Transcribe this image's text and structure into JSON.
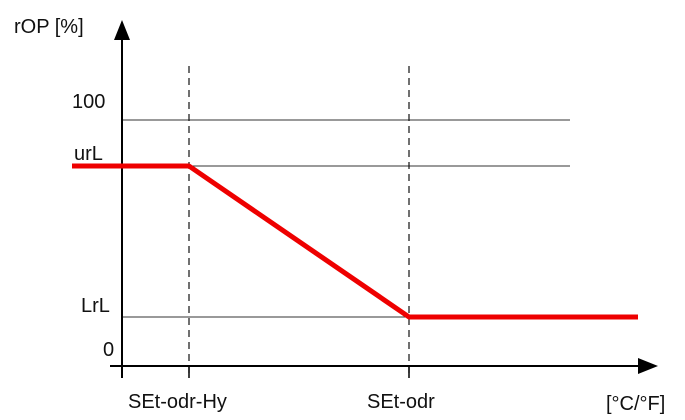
{
  "chart_data": {
    "type": "line",
    "ylabel": "rOP [%]",
    "xlabel": "[°C/°F]",
    "y_ticks": [
      {
        "label": "100",
        "value": 100
      },
      {
        "label": "urL",
        "value": 80
      },
      {
        "label": "LrL",
        "value": 20
      },
      {
        "label": "0",
        "value": 0
      }
    ],
    "x_markers": [
      {
        "label": "SEt-odr-Hy"
      },
      {
        "label": "SEt-odr"
      }
    ],
    "series": [
      {
        "points": [
          {
            "x": "start",
            "y": "urL"
          },
          {
            "x": "SEt-odr-Hy",
            "y": "urL"
          },
          {
            "x": "SEt-odr",
            "y": "LrL"
          },
          {
            "x": "end",
            "y": "LrL"
          }
        ]
      }
    ],
    "colors": {
      "curve": "#ee0000",
      "axis": "#000000",
      "grid": "#333333"
    }
  }
}
